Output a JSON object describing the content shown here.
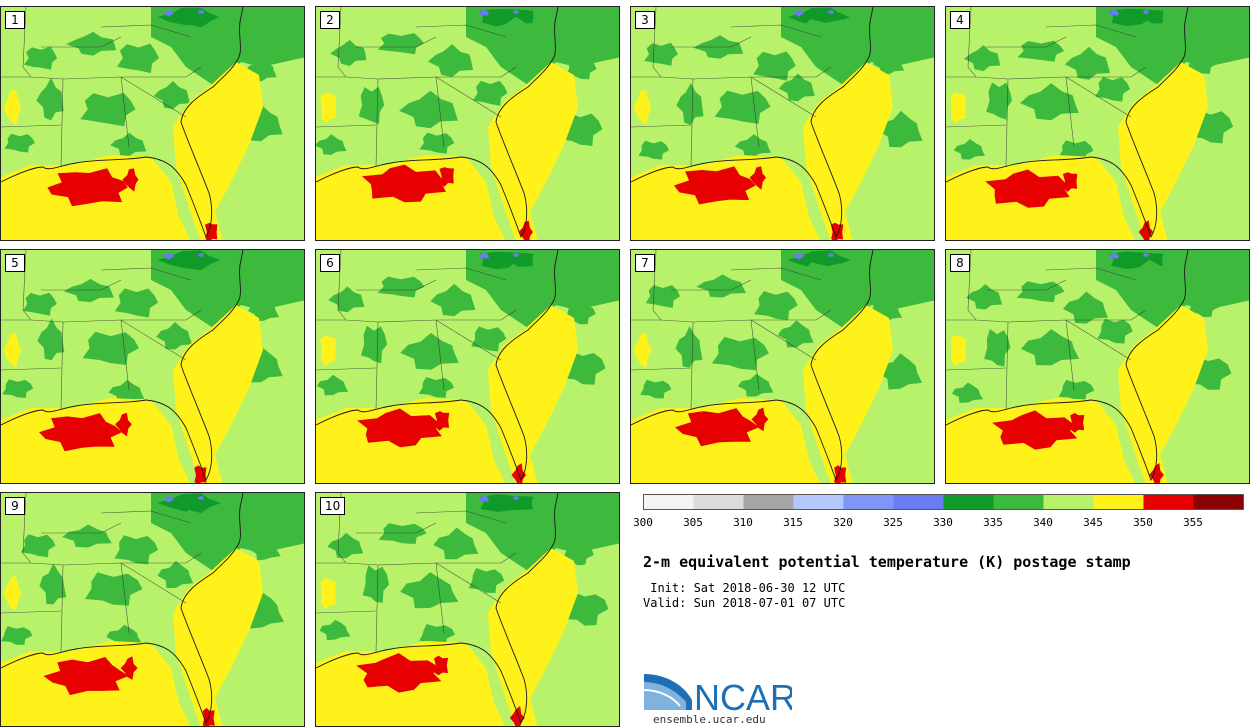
{
  "title": "2-m equivalent potential temperature (K) postage stamp",
  "init_line": " Init: Sat 2018-06-30 12 UTC",
  "valid_line": "Valid: Sun 2018-07-01 07 UTC",
  "logo": {
    "text": "NCAR",
    "url": "ensemble.ucar.edu"
  },
  "colors": {
    "base": "#b8f26b",
    "dark_green": "#3dba3d",
    "darkest_green": "#0f9a2a",
    "yellow": "#fff21a",
    "red": "#e60000",
    "lake_blue": "#6b7cf0",
    "border_line": "#1a1a1a",
    "logo_blue": "#1f6fb5"
  },
  "panels": [
    {
      "label": "1"
    },
    {
      "label": "2"
    },
    {
      "label": "3"
    },
    {
      "label": "4"
    },
    {
      "label": "5"
    },
    {
      "label": "6"
    },
    {
      "label": "7"
    },
    {
      "label": "8"
    },
    {
      "label": "9"
    },
    {
      "label": "10"
    }
  ],
  "colorbar": {
    "labels": [
      "300",
      "305",
      "310",
      "315",
      "320",
      "325",
      "330",
      "335",
      "340",
      "345",
      "350",
      "355"
    ],
    "bins": [
      {
        "min": 300,
        "max": 305,
        "color": "#f4f4f4"
      },
      {
        "min": 305,
        "max": 310,
        "color": "#dcdcdc"
      },
      {
        "min": 310,
        "max": 315,
        "color": "#a6a6a6"
      },
      {
        "min": 315,
        "max": 320,
        "color": "#b3c7fa"
      },
      {
        "min": 320,
        "max": 325,
        "color": "#7f96f7"
      },
      {
        "min": 325,
        "max": 330,
        "color": "#6b7cf0"
      },
      {
        "min": 330,
        "max": 335,
        "color": "#0f9a2a"
      },
      {
        "min": 335,
        "max": 340,
        "color": "#3dba3d"
      },
      {
        "min": 340,
        "max": 345,
        "color": "#b8f26b"
      },
      {
        "min": 345,
        "max": 350,
        "color": "#fff21a"
      },
      {
        "min": 350,
        "max": 355,
        "color": "#e60000"
      },
      {
        "min": 355,
        "max": 360,
        "color": "#8b0000"
      }
    ]
  }
}
